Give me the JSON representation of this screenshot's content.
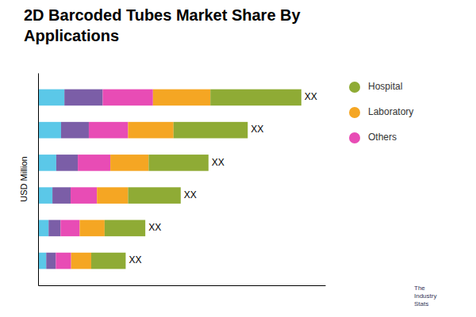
{
  "chart_data": {
    "type": "bar",
    "orientation": "horizontal",
    "stacked": true,
    "title": "2D Barcoded Tubes Market Share By\nApplications",
    "y_label": "USD Million",
    "categories": [
      null,
      null,
      null,
      null,
      null,
      null
    ],
    "series": [
      {
        "color": "#5BC8E8",
        "values": [
          0.55,
          0.48,
          0.38,
          0.3,
          0.22,
          0.17
        ]
      },
      {
        "color": "#7B5EA7",
        "values": [
          0.8,
          0.58,
          0.45,
          0.38,
          0.25,
          0.2
        ]
      },
      {
        "name": "Others",
        "color": "#E84CB5",
        "values": [
          1.05,
          0.82,
          0.68,
          0.55,
          0.4,
          0.32
        ]
      },
      {
        "name": "Laboratory",
        "color": "#F5A623",
        "values": [
          1.2,
          0.95,
          0.8,
          0.65,
          0.52,
          0.42
        ]
      },
      {
        "name": "Hospital",
        "color": "#8FAB35",
        "values": [
          1.9,
          1.55,
          1.25,
          1.1,
          0.85,
          0.72
        ]
      }
    ],
    "annotations": [
      "XX",
      "XX",
      "XX",
      "XX",
      "XX",
      "XX",
      "The\nIndustry\nStats"
    ],
    "xlim": [
      0,
      6
    ],
    "tick_labels": false,
    "grid": false,
    "legend": "right"
  }
}
